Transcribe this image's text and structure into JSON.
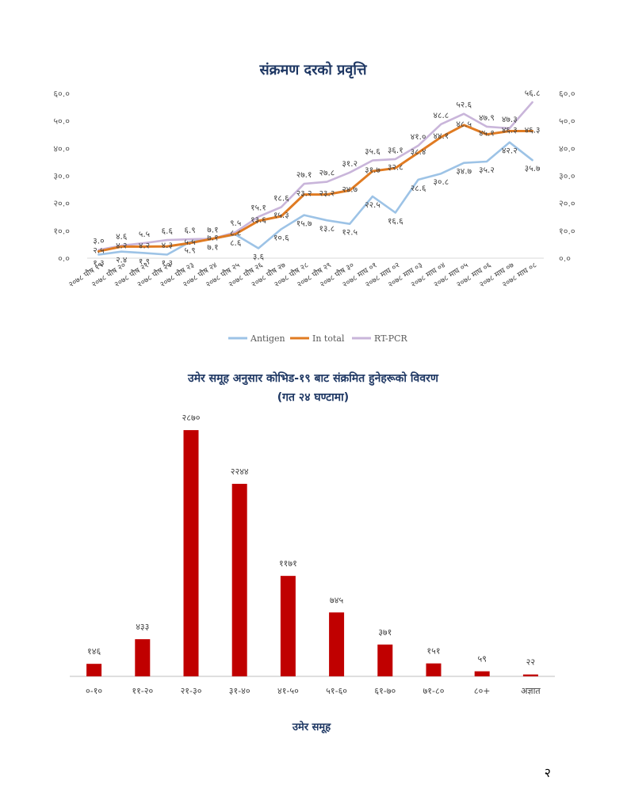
{
  "page_number": "२",
  "chart_data": [
    {
      "type": "line",
      "title": "संक्रमण दरको प्रवृत्ति",
      "ylim": [
        0,
        60
      ],
      "yticks": [
        "०.०",
        "१०.०",
        "२०.०",
        "३०.०",
        "४०.०",
        "५०.०",
        "६०.०"
      ],
      "categories": [
        "२०७८ पौष १९",
        "२०७८ पौष २०",
        "२०७८ पौष २१",
        "२०७८ पौष २२",
        "२०७८ पौष २३",
        "२०७८ पौष २४",
        "२०७८ पौष २५",
        "२०७८ पौष २६",
        "२०७८ पौष २७",
        "२०७८ पौष २८",
        "२०७८ पौष २९",
        "२०७८ पौष ३०",
        "२०७८ माघ ०१",
        "२०७८ माघ ०२",
        "२०७८ माघ ०३",
        "२०७८ माघ ०४",
        "२०७८ माघ ०५",
        "२०७८ माघ ०६",
        "२०७८ माघ ०७",
        "२०७८ माघ ०८"
      ],
      "series": [
        {
          "name": "Antigen",
          "color": "#9dc3e6",
          "values": [
            1.3,
            2.4,
            1.9,
            1.3,
            5.9,
            7.1,
            8.6,
            3.6,
            10.6,
            15.7,
            13.8,
            12.5,
            22.5,
            16.6,
            28.6,
            30.8,
            34.7,
            35.2,
            42.2,
            35.7
          ],
          "labels": [
            "१.३",
            "२.४",
            "१.९",
            "१.३",
            "५.९",
            "७.१",
            "८.६",
            "३.६",
            "१०.६",
            "१५.७",
            "१३.८",
            "१२.५",
            "२२.५",
            "१६.६",
            "२८.६",
            "३०.८",
            "३४.७",
            "३५.२",
            "४२.२",
            "३५.७"
          ]
        },
        {
          "name": "In total",
          "color": "#e07b22",
          "values": [
            2.5,
            4.2,
            4.2,
            4.3,
            5.5,
            7.1,
            8.8,
            13.6,
            15.3,
            23.2,
            23.2,
            24.7,
            31.7,
            32.8,
            38.4,
            44.1,
            48.5,
            45.1,
            46.3,
            46.3
          ],
          "labels": [
            "२.५",
            "४.२",
            "४.२",
            "४.३",
            "५.५",
            "७.१",
            "८.८",
            "१३.६",
            "१५.३",
            "२३.२",
            "२३.२",
            "२४.७",
            "३१.७",
            "३२.८",
            "३८.४",
            "४४.१",
            "४८.५",
            "४५.१",
            "४६.३",
            "४६.३"
          ]
        },
        {
          "name": "RT-PCR",
          "color": "#c9b5da",
          "values": [
            3.0,
            4.6,
            5.5,
            6.6,
            6.9,
            7.1,
            9.5,
            15.1,
            18.6,
            27.1,
            27.8,
            31.2,
            35.6,
            36.1,
            41.0,
            48.8,
            52.6,
            47.9,
            47.3,
            56.8
          ],
          "labels": [
            "३.०",
            "४.६",
            "५.५",
            "६.६",
            "६.९",
            "७.१",
            "९.५",
            "१५.१",
            "१८.६",
            "२७.१",
            "२७.८",
            "३१.२",
            "३५.६",
            "३६.१",
            "४१.०",
            "४८.८",
            "५२.६",
            "४७.९",
            "४७.३",
            "५६.८"
          ]
        }
      ],
      "legend": "bottom"
    },
    {
      "type": "bar",
      "title": "उमेर समूह अनुसार कोभिड-१९ बाट संक्रमित हुनेहरूको विवरण",
      "subtitle": "(गत २४ घण्टामा)",
      "xlabel": "उमेर समूह",
      "color": "#c00000",
      "categories": [
        "०-१०",
        "११-२०",
        "२१-३०",
        "३१-४०",
        "४१-५०",
        "५१-६०",
        "६१-७०",
        "७१-८०",
        "८०+",
        "अज्ञात"
      ],
      "values": [
        146,
        433,
        2870,
        2244,
        1171,
        745,
        371,
        151,
        59,
        22
      ],
      "labels": [
        "१४६",
        "४३३",
        "२८७०",
        "२२४४",
        "११७१",
        "७४५",
        "३७१",
        "१५१",
        "५९",
        "२२"
      ],
      "ylim": [
        0,
        3000
      ]
    }
  ]
}
